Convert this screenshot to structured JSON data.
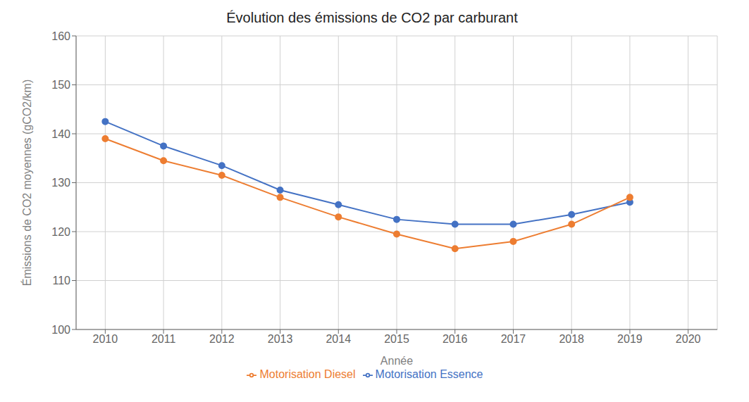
{
  "chart_data": {
    "type": "line",
    "title": "Évolution des émissions de CO2 par carburant",
    "xlabel": "Année",
    "ylabel": "Émissions de CO2 moyennes (gCO2/km)",
    "x": [
      2010,
      2011,
      2012,
      2013,
      2014,
      2015,
      2016,
      2017,
      2018,
      2019
    ],
    "series": [
      {
        "name": "Motorisation Essence",
        "color": "#4472C4",
        "marker": "circle",
        "values": [
          142.5,
          137.5,
          133.5,
          128.5,
          125.5,
          122.5,
          121.5,
          121.5,
          123.5,
          126.0
        ]
      },
      {
        "name": "Motorisation Diesel",
        "color": "#ED7D31",
        "marker": "circle",
        "values": [
          139.0,
          134.5,
          131.5,
          127.0,
          123.0,
          119.5,
          116.5,
          118.0,
          121.5,
          127.0
        ]
      }
    ],
    "xlim": [
      2009.5,
      2020.5
    ],
    "xticks": [
      2010,
      2011,
      2012,
      2013,
      2014,
      2015,
      2016,
      2017,
      2018,
      2019,
      2020
    ],
    "ylim": [
      100,
      160
    ],
    "yticks": [
      100,
      110,
      120,
      130,
      140,
      150,
      160
    ],
    "grid": true,
    "legend": "bottom"
  }
}
